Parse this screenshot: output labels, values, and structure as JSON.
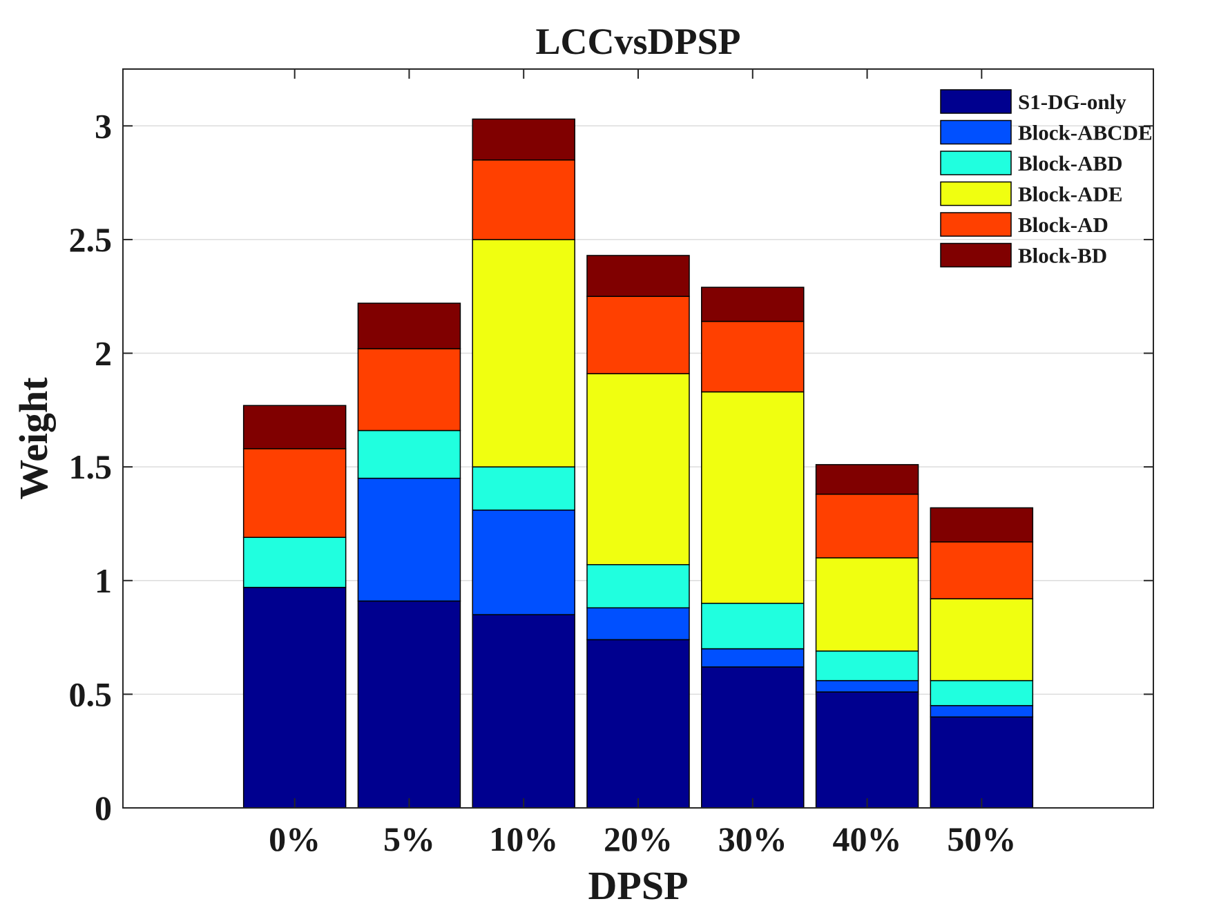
{
  "chart_data": {
    "type": "bar",
    "stacked": true,
    "title": "LCCvsDPSP",
    "xlabel": "DPSP",
    "ylabel": "Weight",
    "categories": [
      "0%",
      "5%",
      "10%",
      "20%",
      "30%",
      "40%",
      "50%"
    ],
    "ylim": [
      0,
      3.25
    ],
    "yticks": [
      0,
      0.5,
      1,
      1.5,
      2,
      2.5,
      3
    ],
    "ytick_labels": [
      "0",
      "0.5",
      "1",
      "1.5",
      "2",
      "2.5",
      "3"
    ],
    "grid": true,
    "legend_position": "top-right",
    "series": [
      {
        "name": "S1-DG-only",
        "color": "#00008f",
        "values": [
          0.97,
          0.91,
          0.85,
          0.74,
          0.62,
          0.51,
          0.4
        ]
      },
      {
        "name": "Block-ABCDE",
        "color": "#0050ff",
        "values": [
          0.0,
          0.54,
          0.46,
          0.14,
          0.08,
          0.05,
          0.05
        ]
      },
      {
        "name": "Block-ABD",
        "color": "#20ffdf",
        "values": [
          0.22,
          0.21,
          0.19,
          0.19,
          0.2,
          0.13,
          0.11
        ]
      },
      {
        "name": "Block-ADE",
        "color": "#f0ff10",
        "values": [
          0.0,
          0.0,
          1.0,
          0.84,
          0.93,
          0.41,
          0.36
        ]
      },
      {
        "name": "Block-AD",
        "color": "#ff4000",
        "values": [
          0.39,
          0.36,
          0.35,
          0.34,
          0.31,
          0.28,
          0.25
        ]
      },
      {
        "name": "Block-BD",
        "color": "#800000",
        "values": [
          0.19,
          0.2,
          0.18,
          0.18,
          0.15,
          0.13,
          0.15
        ]
      }
    ]
  }
}
